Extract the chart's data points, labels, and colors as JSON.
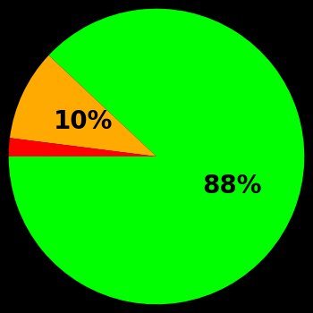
{
  "slices": [
    88,
    10,
    2
  ],
  "colors": [
    "#00ff00",
    "#ffaa00",
    "#ff0000"
  ],
  "labels": [
    "88%",
    "10%",
    ""
  ],
  "background_color": "#000000",
  "text_color": "#000000",
  "font_size": 20,
  "font_weight": "bold",
  "startangle": 180,
  "label_distances": [
    0.55,
    0.55,
    0.0
  ],
  "figsize": [
    3.5,
    3.5
  ],
  "dpi": 100
}
